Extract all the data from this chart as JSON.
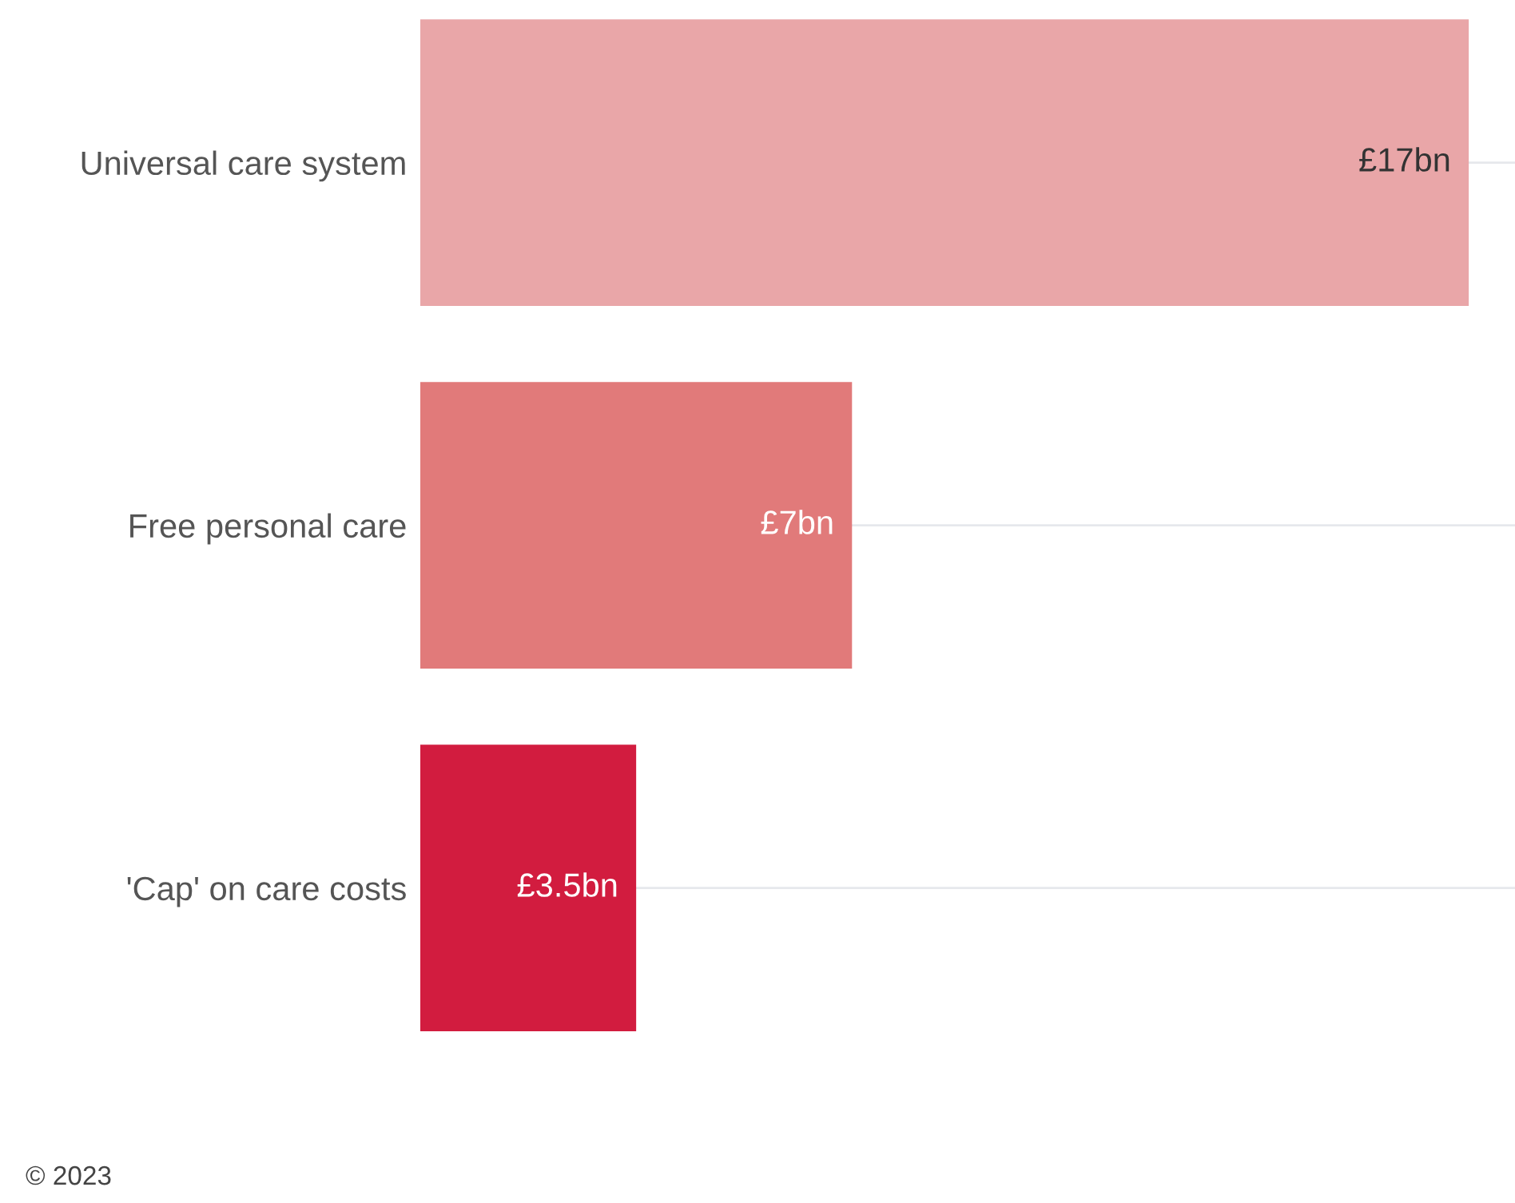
{
  "chart_data": {
    "type": "bar",
    "orientation": "horizontal",
    "categories": [
      "Universal care system",
      "Free personal care",
      "'Cap' on care costs"
    ],
    "values": [
      17,
      7,
      3.5
    ],
    "colors": [
      "#e9a6a8",
      "#e17a7a",
      "#d21c3f"
    ],
    "value_labels": [
      "£17bn",
      "£7bn",
      "£3.5bn"
    ],
    "xlim": [
      0,
      17.75
    ],
    "tick_labels": "y",
    "grid": "y",
    "annotations": [
      "© 2023"
    ]
  }
}
